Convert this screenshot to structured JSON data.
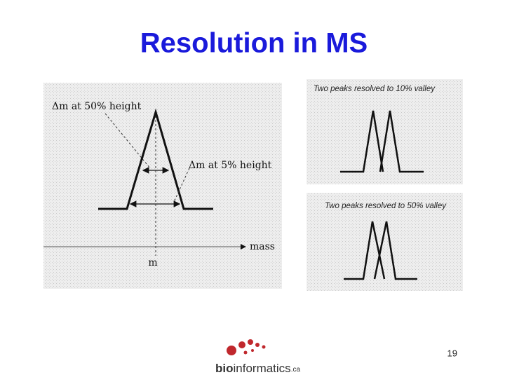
{
  "header": {
    "title": "Resolution in MS"
  },
  "figure_left": {
    "label_50": "Δm at 50% height",
    "label_5": "Δm at 5% height",
    "axis_label": "mass",
    "center_label": "m"
  },
  "figure_right_top": {
    "caption": "Two peaks resolved to 10% valley"
  },
  "figure_right_bottom": {
    "caption": "Two peaks resolved to 50% valley"
  },
  "footer": {
    "page_number": "19",
    "logo": [
      "bio",
      "informatics",
      ".ca"
    ]
  }
}
